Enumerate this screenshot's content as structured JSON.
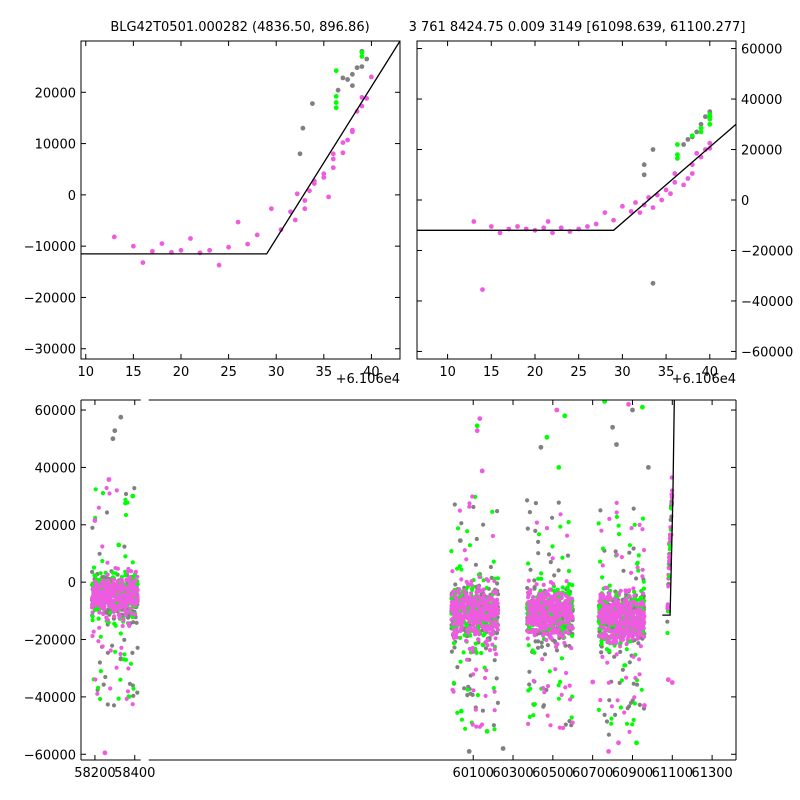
{
  "colors": {
    "magenta": "#ee5be0",
    "green": "#00ff00",
    "gray": "#808080",
    "model": "#000000"
  },
  "titles": {
    "left": "BLG42T0501.000282 (4836.50, 896.86)",
    "right": "3 761 8424.75 0.009 3149 [61098.639, 61100.277]"
  },
  "offsets": {
    "top_left": "+6.106e4",
    "top_right": "+6.106e4"
  },
  "chart_data": [
    {
      "type": "scatter",
      "panel": "top-left",
      "xlim": [
        9.5,
        43
      ],
      "ylim": [
        -32000,
        30000
      ],
      "xticks": [
        10,
        15,
        20,
        25,
        30,
        35,
        40
      ],
      "xtick_labels": [
        "10",
        "15",
        "20",
        "25",
        "30",
        "35",
        "40"
      ],
      "yticks": [
        -30000,
        -20000,
        -10000,
        0,
        10000,
        20000
      ],
      "ytick_labels": [
        "−30000",
        "−20000",
        "−10000",
        "0",
        "10000",
        "20000"
      ],
      "x_offset_label": "+6.106e4",
      "model_line": {
        "x": [
          9.5,
          29,
          43
        ],
        "y": [
          -11500,
          -11500,
          30000
        ]
      },
      "series": [
        {
          "color": "magenta",
          "points": [
            [
              13,
              -8200
            ],
            [
              15,
              -10000
            ],
            [
              16,
              -13200
            ],
            [
              17,
              -11000
            ],
            [
              18,
              -9500
            ],
            [
              19,
              -11200
            ],
            [
              20,
              -10800
            ],
            [
              21,
              -8500
            ],
            [
              22,
              -11300
            ],
            [
              23,
              -10800
            ],
            [
              24,
              -13700
            ],
            [
              25,
              -10200
            ],
            [
              26,
              -5300
            ],
            [
              27,
              -9600
            ],
            [
              28,
              -7800
            ],
            [
              29.5,
              -2700
            ],
            [
              30.5,
              -6800
            ],
            [
              31.5,
              -3300
            ],
            [
              32,
              -4900
            ],
            [
              32.2,
              200
            ],
            [
              33,
              -2700
            ],
            [
              33,
              -1100
            ],
            [
              33.5,
              800
            ],
            [
              34,
              2200
            ],
            [
              34,
              2700
            ],
            [
              35,
              4100
            ],
            [
              35,
              3400
            ],
            [
              35.5,
              -400
            ],
            [
              36,
              5300
            ],
            [
              36,
              7000
            ],
            [
              36,
              8000
            ],
            [
              37,
              8200
            ],
            [
              37,
              10200
            ],
            [
              37.5,
              10700
            ],
            [
              38,
              12300
            ],
            [
              38,
              12600
            ],
            [
              38.5,
              16300
            ],
            [
              39,
              19000
            ],
            [
              39,
              17300
            ],
            [
              39.5,
              18800
            ],
            [
              40,
              23000
            ]
          ]
        },
        {
          "color": "gray",
          "points": [
            [
              32.5,
              8000
            ],
            [
              32.8,
              13000
            ],
            [
              33.8,
              17800
            ],
            [
              36.5,
              20400
            ],
            [
              37,
              22800
            ],
            [
              37.5,
              22500
            ],
            [
              38,
              21300
            ],
            [
              38,
              23500
            ],
            [
              38.5,
              24800
            ],
            [
              39,
              25000
            ],
            [
              39.5,
              26500
            ],
            [
              39,
              28000
            ]
          ]
        },
        {
          "color": "green",
          "points": [
            [
              36.3,
              17000
            ],
            [
              36.3,
              18000
            ],
            [
              36.3,
              19200
            ],
            [
              36.3,
              24200
            ],
            [
              39,
              27000
            ],
            [
              39,
              27800
            ]
          ]
        }
      ]
    },
    {
      "type": "scatter",
      "panel": "top-right",
      "xlim": [
        6.5,
        43
      ],
      "ylim": [
        -63000,
        63000
      ],
      "xticks": [
        10,
        15,
        20,
        25,
        30,
        35,
        40
      ],
      "xtick_labels": [
        "10",
        "15",
        "20",
        "25",
        "30",
        "35",
        "40"
      ],
      "yticks": [
        -60000,
        -40000,
        -20000,
        0,
        20000,
        40000,
        60000
      ],
      "ytick_labels": [
        "−60000",
        "−40000",
        "−20000",
        "0",
        "20000",
        "40000",
        "60000"
      ],
      "y_axis_side": "right",
      "x_offset_label": "+6.106e4",
      "model_line": {
        "x": [
          6.5,
          29,
          43
        ],
        "y": [
          -12000,
          -12000,
          30000
        ]
      },
      "series": [
        {
          "color": "magenta",
          "points": [
            [
              13,
              -8500
            ],
            [
              14,
              -35500
            ],
            [
              15,
              -10500
            ],
            [
              16,
              -13000
            ],
            [
              17,
              -11500
            ],
            [
              18,
              -10500
            ],
            [
              19,
              -11500
            ],
            [
              20,
              -12000
            ],
            [
              21,
              -11000
            ],
            [
              21.5,
              -8500
            ],
            [
              22,
              -13000
            ],
            [
              23,
              -11000
            ],
            [
              24,
              -12500
            ],
            [
              25,
              -11500
            ],
            [
              26,
              -10500
            ],
            [
              27,
              -9500
            ],
            [
              28,
              -5000
            ],
            [
              29,
              -8000
            ],
            [
              30,
              -2500
            ],
            [
              31,
              -4500
            ],
            [
              31.5,
              -1000
            ],
            [
              32,
              -5000
            ],
            [
              32.5,
              -2000
            ],
            [
              33,
              1000
            ],
            [
              33.5,
              -3000
            ],
            [
              34,
              2000
            ],
            [
              34.5,
              0
            ],
            [
              35,
              4000
            ],
            [
              35.5,
              2500
            ],
            [
              36,
              7000
            ],
            [
              36,
              10500
            ],
            [
              37,
              6000
            ],
            [
              37.5,
              8500
            ],
            [
              38,
              10500
            ],
            [
              38,
              14000
            ],
            [
              38.5,
              18500
            ],
            [
              39,
              17000
            ],
            [
              39.5,
              20000
            ],
            [
              40,
              22500
            ],
            [
              40,
              20500
            ]
          ]
        },
        {
          "color": "gray",
          "points": [
            [
              32.5,
              10000
            ],
            [
              32.5,
              14000
            ],
            [
              33.5,
              20000
            ],
            [
              33.5,
              -33000
            ],
            [
              37,
              22000
            ],
            [
              37.5,
              24000
            ],
            [
              38,
              25000
            ],
            [
              38.5,
              27000
            ],
            [
              39,
              30000
            ],
            [
              39.5,
              33000
            ],
            [
              40,
              35000
            ]
          ]
        },
        {
          "color": "green",
          "points": [
            [
              36.3,
              16500
            ],
            [
              36.3,
              18000
            ],
            [
              36.3,
              22000
            ],
            [
              38,
              25500
            ],
            [
              39,
              27000
            ],
            [
              39,
              28500
            ],
            [
              40,
              30000
            ],
            [
              40,
              32000
            ],
            [
              40,
              33000
            ],
            [
              40,
              34000
            ]
          ]
        }
      ]
    },
    {
      "type": "scatter",
      "panel": "bottom",
      "xlim": [
        58130,
        61420
      ],
      "ylim": [
        -62000,
        63500
      ],
      "xticks": [
        58200,
        58400,
        60100,
        60300,
        60500,
        60700,
        60900,
        61100,
        61300
      ],
      "xtick_labels": [
        "58200",
        "58400",
        "60100",
        "60300",
        "60500",
        "60700",
        "60900",
        "61100",
        "61300"
      ],
      "yticks": [
        -60000,
        -40000,
        -20000,
        0,
        20000,
        40000,
        60000
      ],
      "ytick_labels": [
        "−60000",
        "−40000",
        "−20000",
        "0",
        "20000",
        "40000",
        "60000"
      ],
      "x_break": [
        58430,
        58470
      ],
      "seasons": [
        {
          "x_range": [
            58185,
            58415
          ],
          "center": -5000,
          "spread": 4500,
          "n": 260,
          "outliers": 24
        },
        {
          "x_range": [
            59990,
            60225
          ],
          "center": -10500,
          "spread": 5500,
          "n": 300,
          "outliers": 28
        },
        {
          "x_range": [
            60370,
            60600
          ],
          "center": -11000,
          "spread": 5000,
          "n": 300,
          "outliers": 26
        },
        {
          "x_range": [
            60730,
            60960
          ],
          "center": -12500,
          "spread": 5500,
          "n": 300,
          "outliers": 28
        }
      ],
      "model_line": {
        "x": [
          61050,
          61089,
          61103,
          61110
        ],
        "y": [
          -11500,
          -11500,
          30000,
          63500
        ]
      },
      "series": [
        {
          "color": "magenta",
          "points": [
            [
              58270,
              35800
            ],
            [
              58200,
              21500
            ],
            [
              58250,
              -59500
            ],
            [
              60133,
              57000
            ],
            [
              60120,
              52800
            ],
            [
              60145,
              38800
            ],
            [
              60520,
              60000
            ],
            [
              60880,
              62000
            ],
            [
              60700,
              -34800
            ],
            [
              60780,
              -59000
            ],
            [
              60830,
              -56000
            ],
            [
              60960,
              -43000
            ],
            [
              61080,
              -34000
            ],
            [
              61100,
              -35000
            ]
          ]
        },
        {
          "color": "gray",
          "points": [
            [
              58300,
              52800
            ],
            [
              58330,
              57500
            ],
            [
              58290,
              50000
            ],
            [
              60035,
              14500
            ],
            [
              60440,
              47000
            ],
            [
              60800,
              54000
            ],
            [
              60900,
              60000
            ],
            [
              60820,
              48000
            ],
            [
              60980,
              40000
            ],
            [
              60250,
              -58000
            ],
            [
              60080,
              -59000
            ]
          ]
        },
        {
          "color": "green",
          "points": [
            [
              58390,
              30000
            ],
            [
              58320,
              13000
            ],
            [
              60120,
              54500
            ],
            [
              60560,
              58000
            ],
            [
              60470,
              50500
            ],
            [
              60950,
              61000
            ],
            [
              60530,
              40000
            ],
            [
              60760,
              63000
            ],
            [
              60040,
              -45000
            ],
            [
              60170,
              -52000
            ],
            [
              60920,
              -56000
            ]
          ]
        }
      ]
    }
  ]
}
